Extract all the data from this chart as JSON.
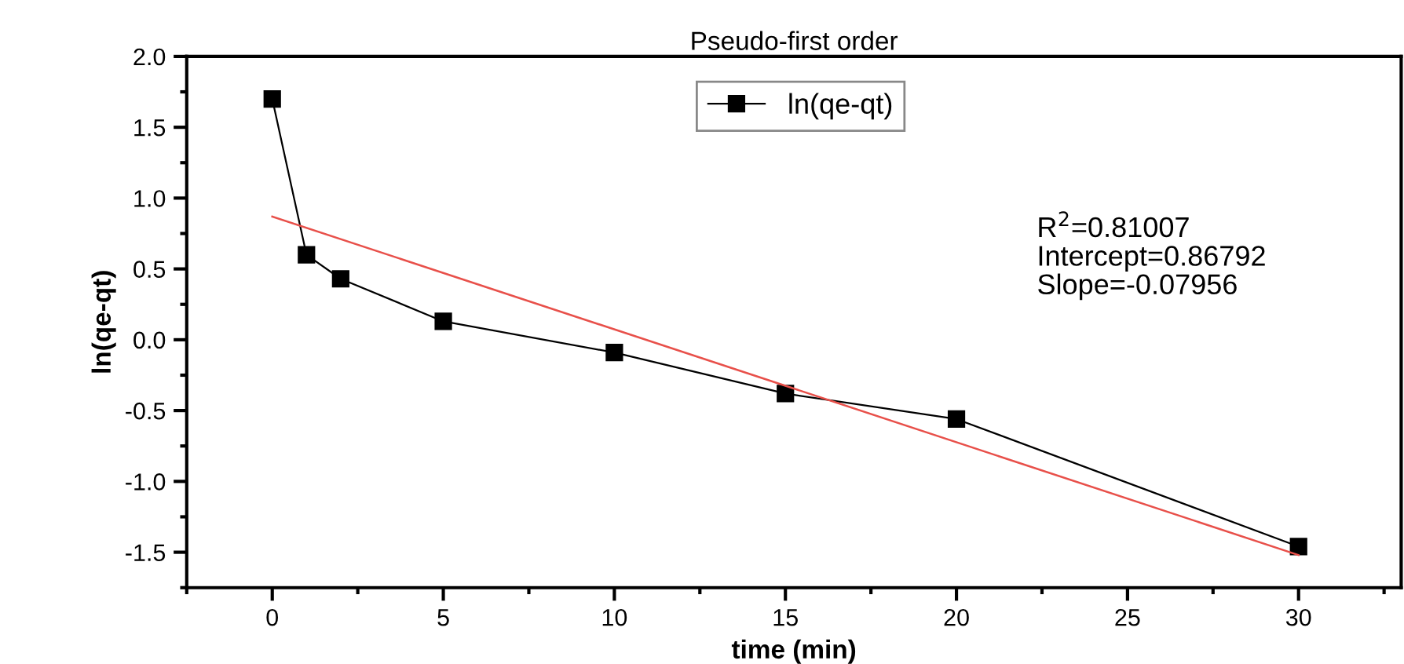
{
  "chart_data": {
    "type": "line",
    "title": "Pseudo-first order",
    "xlabel": "time (min)",
    "ylabel": "ln(qe-qt)",
    "x": [
      0,
      1,
      2,
      5,
      10,
      15,
      20,
      30
    ],
    "series": [
      {
        "name": "ln(qe-qt)",
        "color": "#000000",
        "marker": "square",
        "line_style": "solid",
        "values": [
          1.7,
          0.6,
          0.43,
          0.13,
          -0.09,
          -0.38,
          -0.56,
          -1.46
        ]
      },
      {
        "color": "#e8504a",
        "marker": "none",
        "line_style": "solid",
        "x": [
          0,
          30
        ],
        "values": [
          0.87,
          -1.52
        ]
      }
    ],
    "annotations": [
      "R$^{2}$=0.81007\nIntercept=0.86792\nSlope=-0.07956"
    ],
    "xlim": [
      -2.5,
      33
    ],
    "ylim": [
      -1.75,
      2.0
    ],
    "xticks": [
      0,
      5,
      10,
      15,
      20,
      25,
      30
    ],
    "yticks": [
      -1.5,
      {
        "value": -1,
        "label": "-1.0"
      },
      -0.5,
      {
        "value": 0,
        "label": "0.0"
      },
      0.5,
      {
        "value": 1,
        "label": "1.0"
      },
      1.5,
      {
        "value": 2,
        "label": "2.0"
      }
    ],
    "grid": false,
    "legend": "top right"
  }
}
